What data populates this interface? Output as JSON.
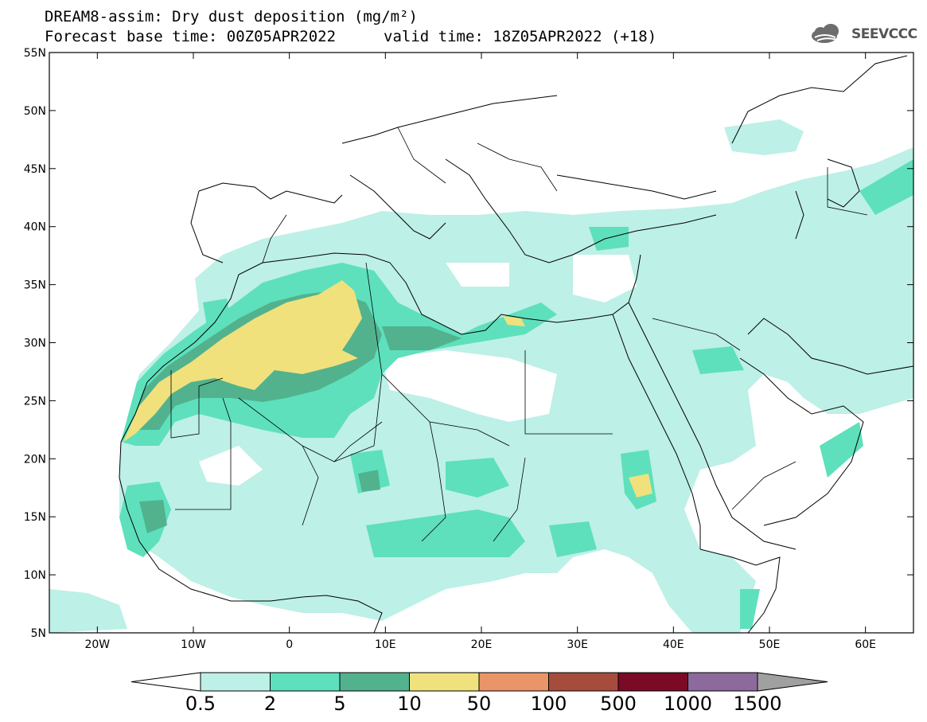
{
  "header": {
    "title": "DREAM8-assim: Dry dust deposition (mg/m²)",
    "base_time": "Forecast base time: 00Z05APR2022",
    "valid_time": "valid time: 18Z05APR2022 (+18)",
    "logo_text": "SEEVCCC"
  },
  "map": {
    "lon_range": [
      -25,
      65
    ],
    "lat_range": [
      5,
      55
    ],
    "lat_ticks": [
      {
        "value": 55,
        "label": "55N"
      },
      {
        "value": 50,
        "label": "50N"
      },
      {
        "value": 45,
        "label": "45N"
      },
      {
        "value": 40,
        "label": "40N"
      },
      {
        "value": 35,
        "label": "35N"
      },
      {
        "value": 30,
        "label": "30N"
      },
      {
        "value": 25,
        "label": "25N"
      },
      {
        "value": 20,
        "label": "20N"
      },
      {
        "value": 15,
        "label": "15N"
      },
      {
        "value": 10,
        "label": "10N"
      },
      {
        "value": 5,
        "label": "5N"
      }
    ],
    "lon_ticks": [
      {
        "value": -20,
        "label": "20W"
      },
      {
        "value": -10,
        "label": "10W"
      },
      {
        "value": 0,
        "label": "0"
      },
      {
        "value": 10,
        "label": "10E"
      },
      {
        "value": 20,
        "label": "20E"
      },
      {
        "value": 30,
        "label": "30E"
      },
      {
        "value": 40,
        "label": "40E"
      },
      {
        "value": 50,
        "label": "50E"
      },
      {
        "value": 60,
        "label": "60E"
      }
    ]
  },
  "colorbar": {
    "labels": [
      "0.5",
      "2",
      "5",
      "10",
      "50",
      "100",
      "500",
      "1000",
      "1500"
    ],
    "colors": [
      "#bdf0e6",
      "#5ee0bc",
      "#52b28e",
      "#f0e17d",
      "#e99567",
      "#a64c3d",
      "#7a0a26",
      "#8c6a9c",
      "#a0a0a0"
    ],
    "under_color": "#ffffff"
  },
  "chart_data": {
    "type": "heatmap",
    "title": "DREAM8-assim: Dry dust deposition (mg/m²)",
    "levels": [
      0.5,
      2,
      5,
      10,
      50,
      100,
      500,
      1000,
      1500
    ],
    "xlim": [
      -25,
      65
    ],
    "ylim": [
      5,
      55
    ]
  }
}
